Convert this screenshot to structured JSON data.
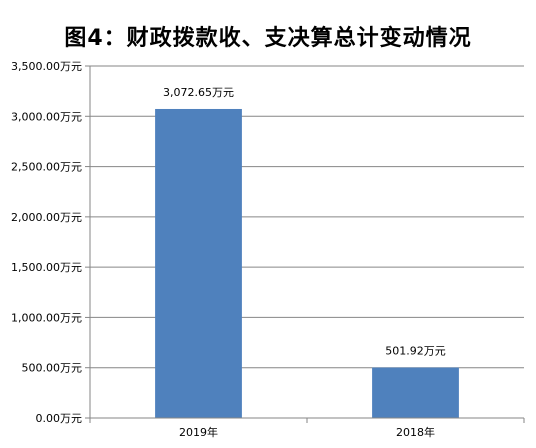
{
  "chart_data": {
    "type": "bar",
    "title": "图4：财政拨款收、支决算总计变动情况",
    "categories": [
      "2019年",
      "2018年"
    ],
    "values": [
      3072.65,
      501.92
    ],
    "data_labels": [
      "3,072.65万元",
      "501.92万元"
    ],
    "xlabel": "",
    "ylabel": "",
    "ylim": [
      0,
      3500
    ],
    "y_ticks": [
      0,
      500,
      1000,
      1500,
      2000,
      2500,
      3000,
      3500
    ],
    "y_tick_labels": [
      "0.00万元",
      "500.00万元",
      "1,000.00万元",
      "1,500.00万元",
      "2,000.00万元",
      "2,500.00万元",
      "3,000.00万元",
      "3,500.00万元"
    ],
    "grid": true,
    "legend": "none",
    "bar_color": "#4F81BD",
    "grid_color": "#868686",
    "axis_color": "#868686"
  }
}
